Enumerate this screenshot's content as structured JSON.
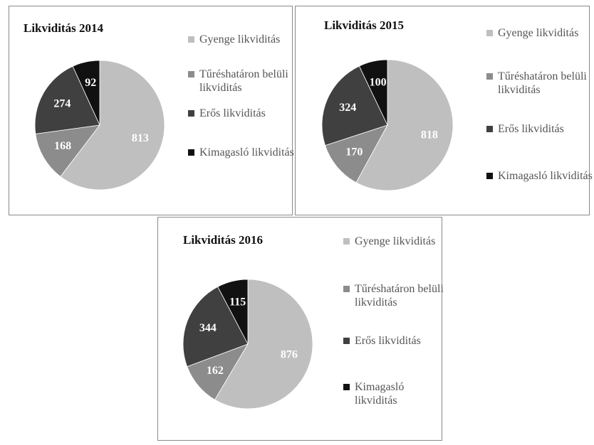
{
  "chart_data": [
    {
      "type": "pie",
      "title": "Likviditás 2014",
      "categories": [
        "Gyenge likviditás",
        "Tűréshatáron belüli likviditás",
        "Erős likviditás",
        "Kimagasló likviditás"
      ],
      "values": [
        813,
        168,
        274,
        92
      ],
      "colors": [
        "#bfbfbf",
        "#8c8c8c",
        "#404040",
        "#111111"
      ]
    },
    {
      "type": "pie",
      "title": "Likviditás 2015",
      "categories": [
        "Gyenge likviditás",
        "Tűréshatáron belüli likviditás",
        "Erős likviditás",
        "Kimagasló likviditás"
      ],
      "values": [
        818,
        170,
        324,
        100
      ],
      "colors": [
        "#bfbfbf",
        "#8c8c8c",
        "#404040",
        "#111111"
      ]
    },
    {
      "type": "pie",
      "title": "Likviditás 2016",
      "categories": [
        "Gyenge likviditás",
        "Tűréshatáron belüli likviditás",
        "Erős likviditás",
        "Kimagasló likviditás"
      ],
      "values": [
        876,
        162,
        344,
        115
      ],
      "colors": [
        "#bfbfbf",
        "#8c8c8c",
        "#404040",
        "#111111"
      ]
    }
  ]
}
